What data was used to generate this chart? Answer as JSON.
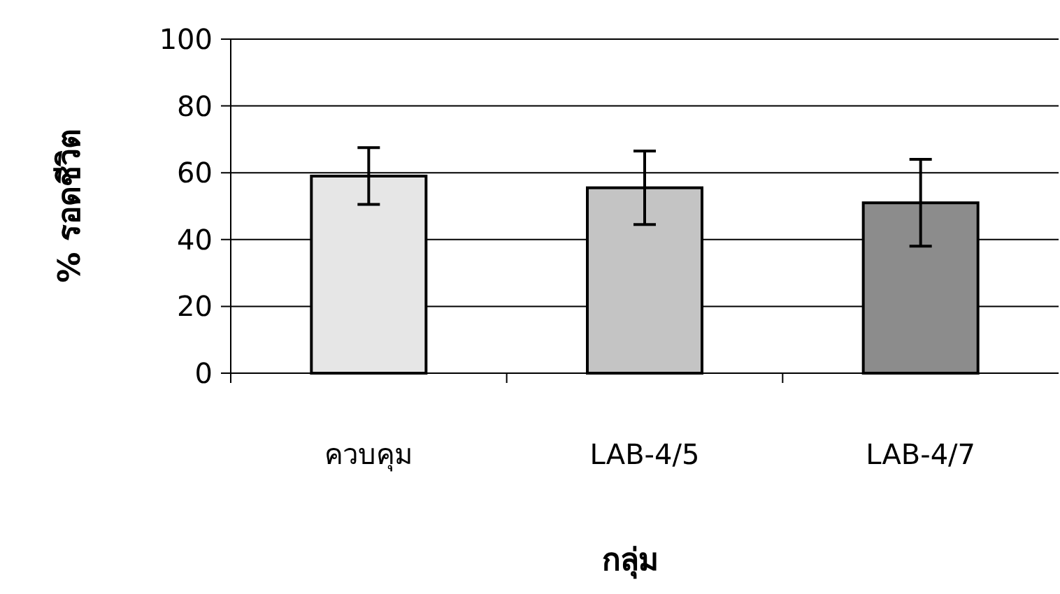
{
  "chart_data": {
    "type": "bar",
    "xlabel": "กลุ่ม",
    "ylabel": "% รอดชีวิต",
    "categories": [
      "ควบคุม",
      "LAB-4/5",
      "LAB-4/7"
    ],
    "values": [
      59,
      55.5,
      51
    ],
    "errors": [
      8.5,
      11,
      13
    ],
    "colors": [
      "#e6e6e6",
      "#c4c4c4",
      "#8c8c8c"
    ],
    "ylim": [
      0,
      100
    ],
    "yticks": [
      0,
      20,
      40,
      60,
      80,
      100
    ],
    "grid": "y"
  }
}
